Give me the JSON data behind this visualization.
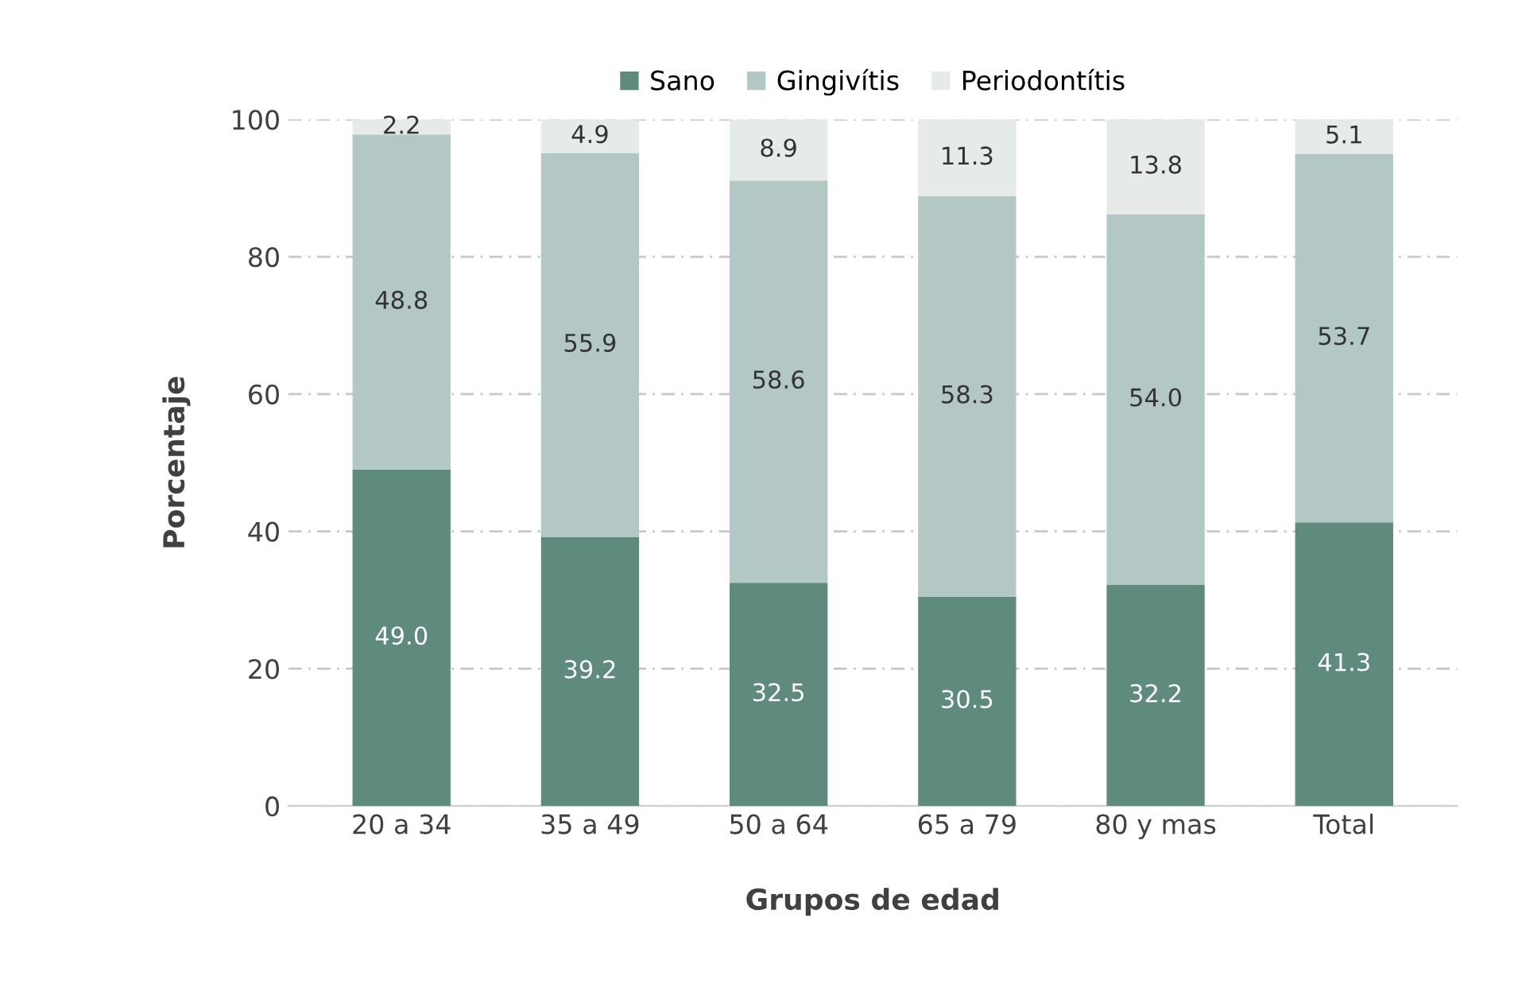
{
  "chart_data": {
    "type": "bar",
    "stacked": true,
    "xlabel": "Grupos de edad",
    "ylabel": "Porcentaje",
    "categories": [
      "20 a 34",
      "35 a 49",
      "50 a 64",
      "65 a 79",
      "80 y mas",
      "Total"
    ],
    "series": [
      {
        "name": "Sano",
        "color": "#5f8a7e",
        "values": [
          49.0,
          39.2,
          32.5,
          30.5,
          32.2,
          41.3
        ],
        "value_labels": [
          "49.0",
          "39.2",
          "32.5",
          "30.5",
          "32.2",
          "41.3"
        ]
      },
      {
        "name": "Gingivítis",
        "color": "#b3c7c4",
        "values": [
          48.8,
          55.9,
          58.6,
          58.3,
          54.0,
          53.7
        ],
        "value_labels": [
          "48.8",
          "55.9",
          "58.6",
          "58.3",
          "54.0",
          "53.7"
        ]
      },
      {
        "name": "Periodontítis",
        "color": "#e6ebe9",
        "values": [
          2.2,
          4.9,
          8.9,
          11.3,
          13.8,
          5.1
        ],
        "value_labels": [
          "2.2",
          "4.9",
          "8.9",
          "11.3",
          "13.8",
          "5.1"
        ]
      }
    ],
    "ylim": [
      0,
      100
    ],
    "yticks": [
      0,
      20,
      40,
      60,
      80,
      100
    ],
    "grid": "y",
    "legend": "top"
  }
}
